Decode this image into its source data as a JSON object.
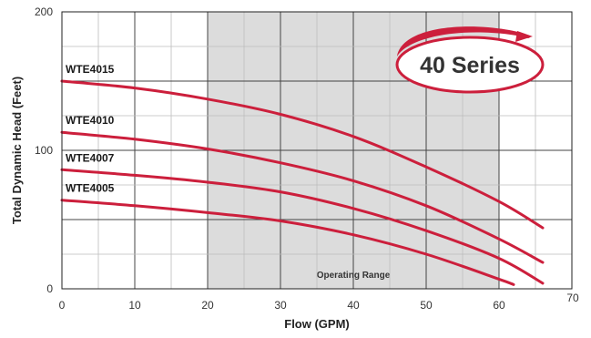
{
  "chart_data": {
    "type": "line",
    "title": "",
    "badge": "40 Series",
    "xlabel": "Flow (GPM)",
    "ylabel": "Total Dynamic Head (Feet)",
    "xlim": [
      0,
      70
    ],
    "ylim": [
      0,
      200
    ],
    "x_ticks": [
      0,
      10,
      20,
      30,
      40,
      50,
      60,
      70
    ],
    "x_tick_labels": [
      "0",
      "10",
      "20",
      "30",
      "40",
      "50",
      "60",
      "70"
    ],
    "y_tick_labels": [
      {
        "value": 0,
        "label": "0"
      },
      {
        "value": 100,
        "label": "100"
      },
      {
        "value": 200,
        "label": "200"
      }
    ],
    "grid": true,
    "shaded_region": {
      "label": "Operating Range",
      "x": [
        20,
        60
      ]
    },
    "curve_color": "#cc1f3c",
    "series": [
      {
        "name": "WTE4015",
        "x": [
          0,
          10,
          20,
          30,
          40,
          50,
          60,
          66
        ],
        "y": [
          150,
          145,
          137,
          126,
          110,
          88,
          63,
          44
        ]
      },
      {
        "name": "WTE4010",
        "x": [
          0,
          10,
          20,
          30,
          40,
          50,
          60,
          66
        ],
        "y": [
          113,
          108,
          101,
          91,
          78,
          60,
          36,
          19
        ]
      },
      {
        "name": "WTE4007",
        "x": [
          0,
          10,
          20,
          30,
          40,
          50,
          60,
          66
        ],
        "y": [
          86,
          82,
          77,
          70,
          58,
          42,
          22,
          4
        ]
      },
      {
        "name": "WTE4005",
        "x": [
          0,
          10,
          20,
          30,
          40,
          50,
          60,
          62
        ],
        "y": [
          64,
          60,
          55,
          49,
          39,
          25,
          7,
          3
        ]
      }
    ]
  }
}
